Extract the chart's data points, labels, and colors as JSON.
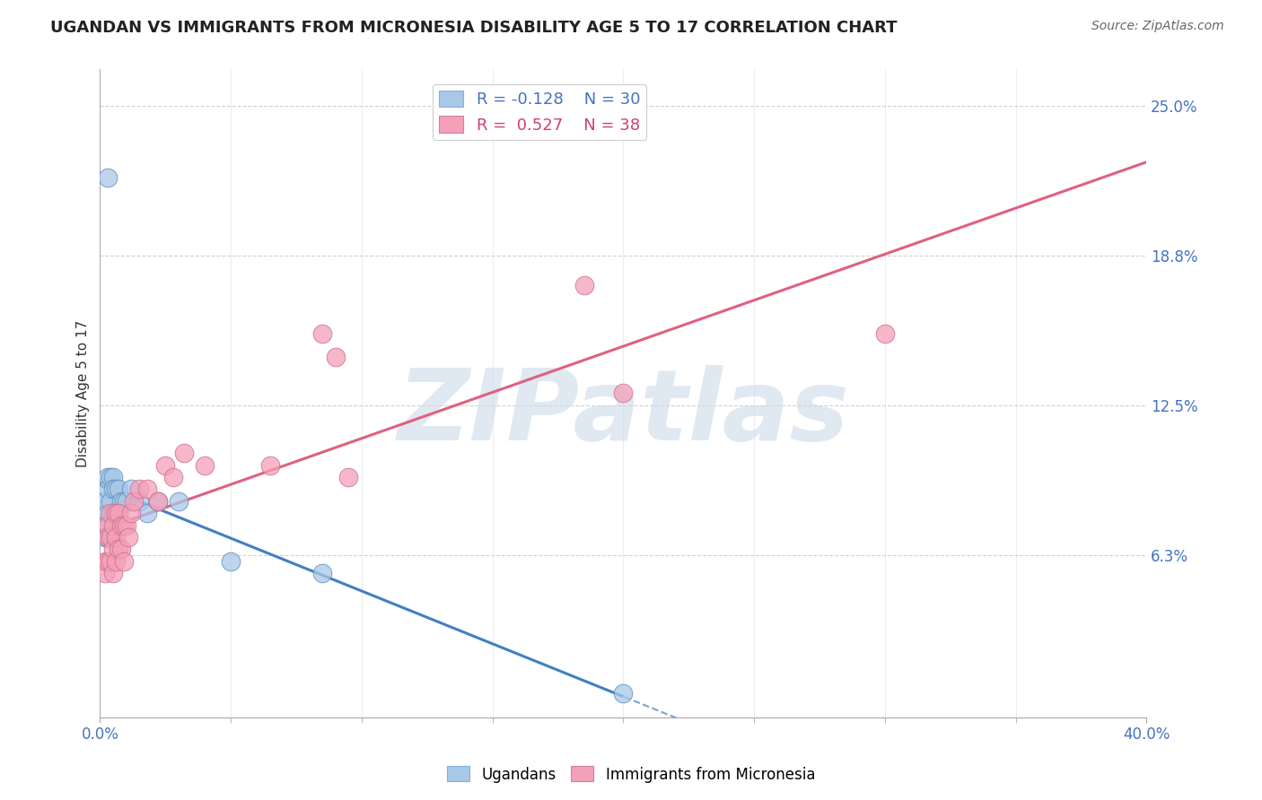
{
  "title": "UGANDAN VS IMMIGRANTS FROM MICRONESIA DISABILITY AGE 5 TO 17 CORRELATION CHART",
  "source": "Source: ZipAtlas.com",
  "ylabel": "Disability Age 5 to 17",
  "xlim": [
    0.0,
    0.4
  ],
  "ylim": [
    -0.005,
    0.265
  ],
  "ytick_vals": [
    0.0625,
    0.125,
    0.1875,
    0.25
  ],
  "ytick_labels": [
    "6.3%",
    "12.5%",
    "18.8%",
    "25.0%"
  ],
  "xtick_vals": [
    0.0,
    0.4
  ],
  "xtick_labels": [
    "0.0%",
    "40.0%"
  ],
  "xtick_minor_vals": [
    0.05,
    0.1,
    0.15,
    0.2,
    0.25,
    0.3,
    0.35
  ],
  "legend_r1": "R = -0.128",
  "legend_n1": "N = 30",
  "legend_r2": "R =  0.527",
  "legend_n2": "N = 38",
  "blue_color": "#a8c8e8",
  "pink_color": "#f4a0b8",
  "trend_blue": "#4080c0",
  "trend_pink": "#e06080",
  "ugandan_x": [
    0.002,
    0.002,
    0.002,
    0.003,
    0.003,
    0.003,
    0.003,
    0.004,
    0.004,
    0.004,
    0.005,
    0.005,
    0.005,
    0.005,
    0.006,
    0.006,
    0.007,
    0.007,
    0.008,
    0.009,
    0.01,
    0.012,
    0.015,
    0.018,
    0.022,
    0.03,
    0.05,
    0.085,
    0.2,
    0.003
  ],
  "ugandan_y": [
    0.085,
    0.075,
    0.07,
    0.095,
    0.09,
    0.08,
    0.07,
    0.095,
    0.085,
    0.07,
    0.095,
    0.09,
    0.08,
    0.07,
    0.09,
    0.08,
    0.09,
    0.08,
    0.085,
    0.085,
    0.085,
    0.09,
    0.085,
    0.08,
    0.085,
    0.085,
    0.06,
    0.055,
    0.005,
    0.22
  ],
  "micronesia_x": [
    0.002,
    0.002,
    0.003,
    0.003,
    0.003,
    0.004,
    0.004,
    0.004,
    0.005,
    0.005,
    0.005,
    0.006,
    0.006,
    0.006,
    0.007,
    0.007,
    0.008,
    0.008,
    0.009,
    0.009,
    0.01,
    0.011,
    0.012,
    0.013,
    0.015,
    0.018,
    0.022,
    0.025,
    0.028,
    0.032,
    0.04,
    0.065,
    0.085,
    0.09,
    0.095,
    0.185,
    0.2,
    0.3
  ],
  "micronesia_y": [
    0.06,
    0.055,
    0.075,
    0.07,
    0.06,
    0.08,
    0.07,
    0.06,
    0.075,
    0.065,
    0.055,
    0.08,
    0.07,
    0.06,
    0.08,
    0.065,
    0.075,
    0.065,
    0.075,
    0.06,
    0.075,
    0.07,
    0.08,
    0.085,
    0.09,
    0.09,
    0.085,
    0.1,
    0.095,
    0.105,
    0.1,
    0.1,
    0.155,
    0.145,
    0.095,
    0.175,
    0.13,
    0.155
  ],
  "watermark": "ZIPatlas",
  "watermark_color": "#c8d8e8",
  "background_color": "#ffffff",
  "grid_color": "#cccccc"
}
